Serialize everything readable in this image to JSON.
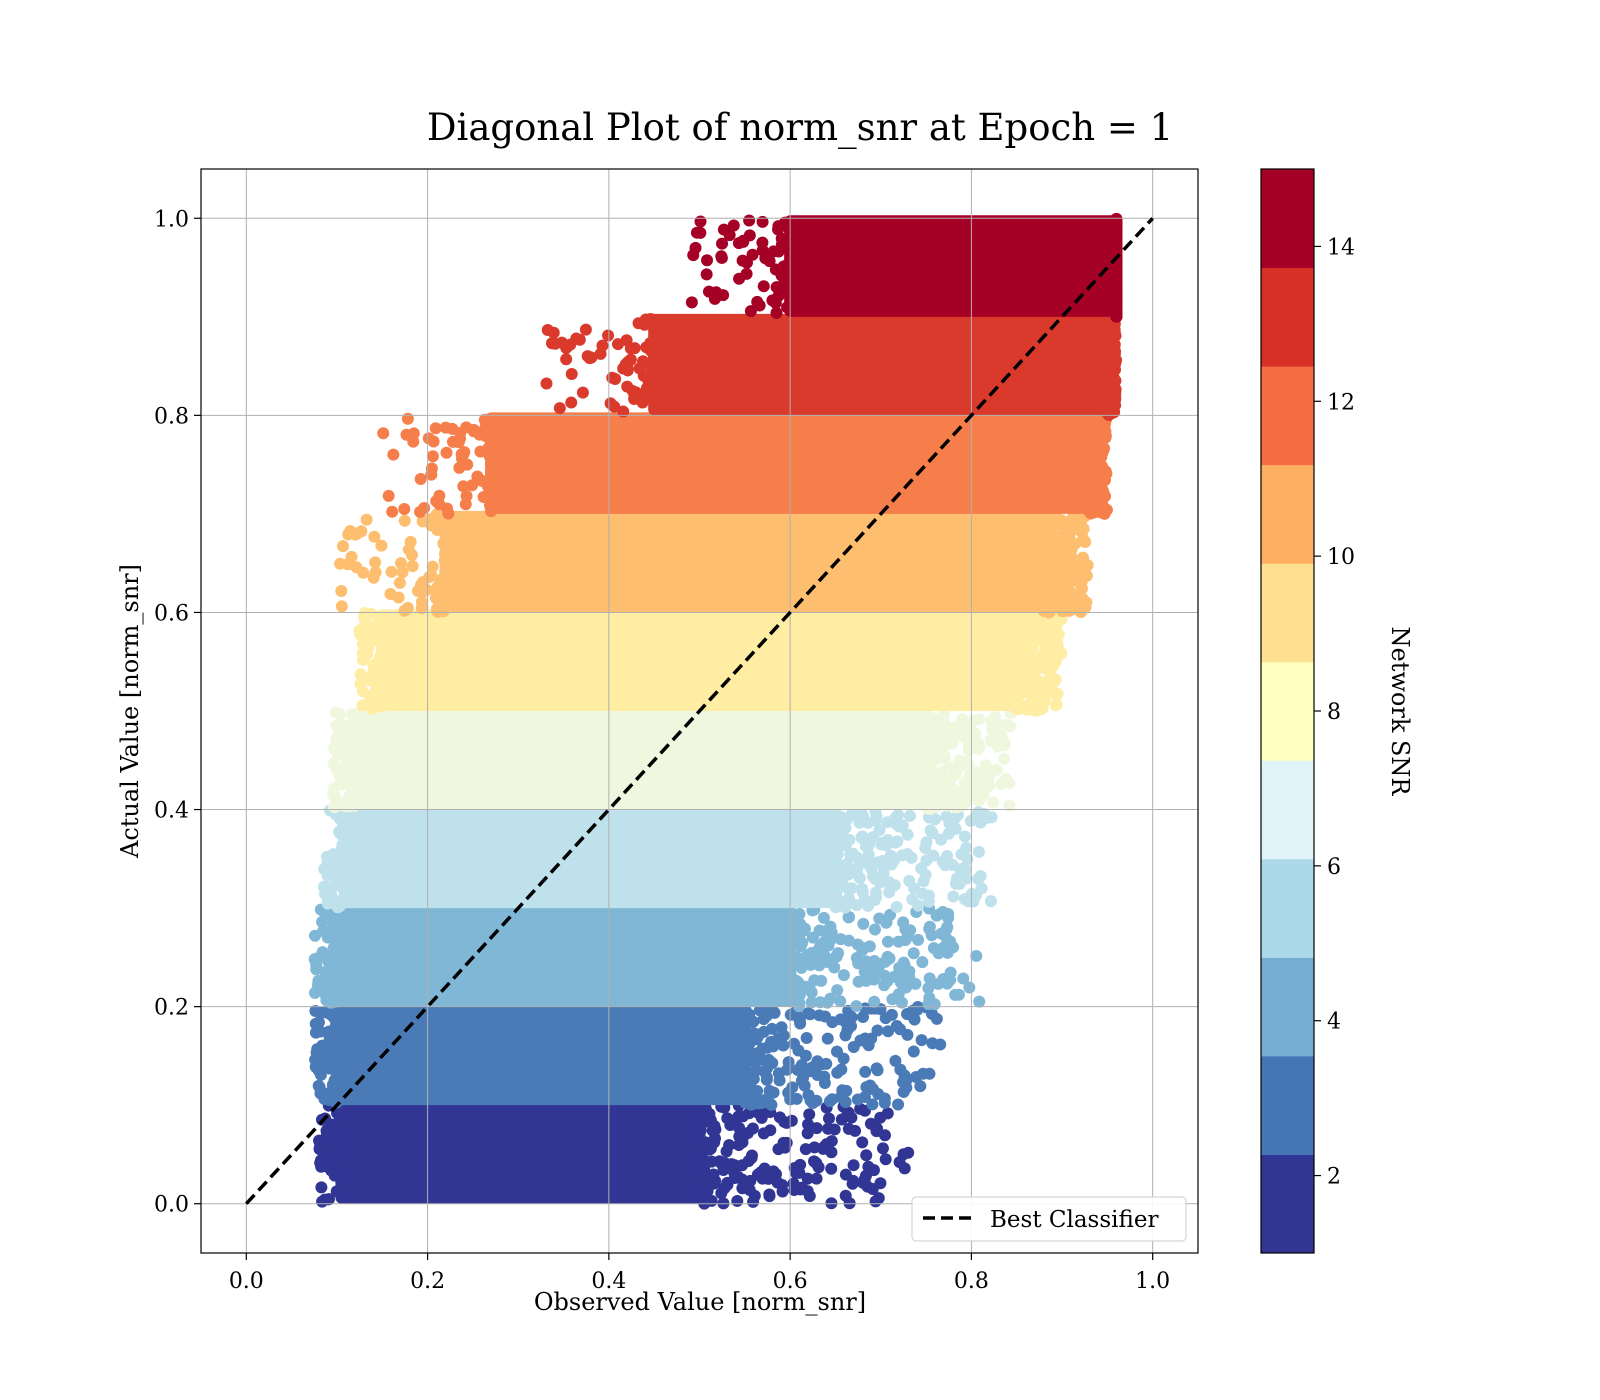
{
  "chart_data": {
    "type": "scatter",
    "title": "Diagonal Plot of norm_snr at Epoch = 1",
    "xlabel": "Observed Value [norm_snr]",
    "ylabel": "Actual Value [norm_snr]",
    "xlim": [
      -0.05,
      1.05
    ],
    "ylim": [
      -0.05,
      1.05
    ],
    "x_ticks": [
      0.0,
      0.2,
      0.4,
      0.6,
      0.8,
      1.0
    ],
    "x_tick_labels": [
      "0.0",
      "0.2",
      "0.4",
      "0.6",
      "0.8",
      "1.0"
    ],
    "y_ticks": [
      0.0,
      0.2,
      0.4,
      0.6,
      0.8,
      1.0
    ],
    "y_tick_labels": [
      "0.0",
      "0.2",
      "0.4",
      "0.6",
      "0.8",
      "1.0"
    ],
    "grid": true,
    "legend": {
      "placement": "lower-right",
      "entries": [
        "Best Classifier"
      ]
    },
    "reference_line": {
      "name": "Best Classifier",
      "style": "dashed",
      "color": "#000000",
      "x": [
        0.0,
        1.0
      ],
      "y": [
        0.0,
        1.0
      ]
    },
    "colorbar": {
      "label": "Network SNR",
      "range": [
        1,
        15
      ],
      "ticks": [
        2,
        4,
        6,
        8,
        10,
        12,
        14
      ],
      "tick_labels": [
        "2",
        "4",
        "6",
        "8",
        "10",
        "12",
        "14"
      ],
      "colormap": "RdYlBu_r",
      "colors": [
        "#313695",
        "#4575b4",
        "#74add1",
        "#abd9e9",
        "#e0f3f8",
        "#ffffbf",
        "#fee090",
        "#fdae61",
        "#f46d43",
        "#d73027",
        "#a50026"
      ]
    },
    "band_colors": [
      "#313695",
      "#4a7bb7",
      "#80b6d6",
      "#bfe1ec",
      "#eff8df",
      "#feeda2",
      "#fdbe70",
      "#f57e4b",
      "#da3a2c",
      "#a50026"
    ],
    "bands": [
      {
        "y": [
          0.0,
          0.1
        ],
        "core_x": [
          0.105,
          0.5
        ],
        "scatter_xmax": 0.74,
        "snr": 1.7
      },
      {
        "y": [
          0.1,
          0.2
        ],
        "core_x": [
          0.1,
          0.55
        ],
        "scatter_xmax": 0.77,
        "snr": 3.1
      },
      {
        "y": [
          0.2,
          0.3
        ],
        "core_x": [
          0.1,
          0.6
        ],
        "scatter_xmax": 0.81,
        "snr": 4.5
      },
      {
        "y": [
          0.3,
          0.4
        ],
        "core_x": [
          0.11,
          0.65
        ],
        "scatter_xmax": 0.83,
        "snr": 5.9
      },
      {
        "y": [
          0.4,
          0.5
        ],
        "core_x": [
          0.12,
          0.75
        ],
        "scatter_xmax": 0.85,
        "snr": 7.3
      },
      {
        "y": [
          0.5,
          0.6
        ],
        "core_x": [
          0.15,
          0.85
        ],
        "scatter_xmax": 0.9,
        "snr": 8.7
      },
      {
        "y": [
          0.6,
          0.7
        ],
        "core_x": [
          0.22,
          0.88
        ],
        "scatter_xmax": 0.93,
        "snr": 10.1
      },
      {
        "y": [
          0.7,
          0.8
        ],
        "core_x": [
          0.27,
          0.93
        ],
        "scatter_xmax": 0.95,
        "snr": 11.5
      },
      {
        "y": [
          0.8,
          0.9
        ],
        "core_x": [
          0.45,
          0.95
        ],
        "scatter_xmax": 0.96,
        "snr": 12.9
      },
      {
        "y": [
          0.9,
          1.0
        ],
        "core_x": [
          0.6,
          0.96
        ],
        "scatter_xmax": 0.96,
        "snr": 14.3
      }
    ]
  }
}
